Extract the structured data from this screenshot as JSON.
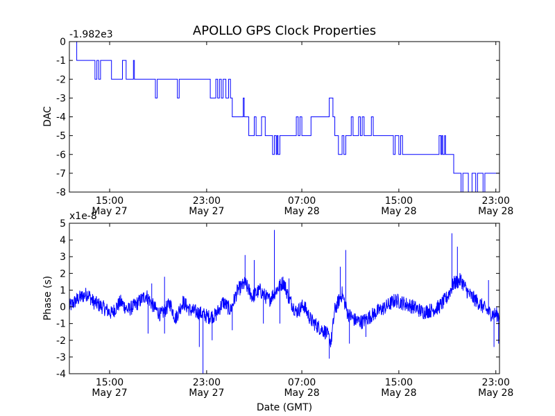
{
  "chart_data": [
    {
      "type": "line",
      "title": "APOLLO GPS Clock Properties",
      "ylabel": "DAC",
      "xlabel": "",
      "offset_label": "-1.982e3",
      "color": "#0000ff",
      "xlim_hours": [
        10,
        33.5
      ],
      "ylim": [
        -8,
        0
      ],
      "yticks": [
        0,
        -1,
        -2,
        -3,
        -4,
        -5,
        -6,
        -7,
        -8
      ],
      "ytick_labels": [
        "0",
        "-1",
        "-2",
        "-3",
        "-4",
        "-5",
        "-6",
        "-7",
        "-8"
      ],
      "xticks": [
        {
          "hours": 12.2,
          "time": "15:00",
          "date": "May 27"
        },
        {
          "hours": 17.5,
          "time": "23:00",
          "date": "May 27"
        },
        {
          "hours": 22.7,
          "time": "07:00",
          "date": "May 28"
        },
        {
          "hours": 28.0,
          "time": "15:00",
          "date": "May 28"
        },
        {
          "hours": 33.3,
          "time": "23:00",
          "date": "May 28"
        }
      ],
      "segments": [
        [
          10.0,
          0
        ],
        [
          10.4,
          -1
        ],
        [
          11.4,
          -2
        ],
        [
          11.5,
          -1
        ],
        [
          11.6,
          -2
        ],
        [
          11.7,
          -1
        ],
        [
          12.3,
          -2
        ],
        [
          12.9,
          -1
        ],
        [
          13.1,
          -2
        ],
        [
          13.5,
          -1
        ],
        [
          13.55,
          -2
        ],
        [
          14.7,
          -3
        ],
        [
          14.8,
          -2
        ],
        [
          15.9,
          -3
        ],
        [
          16.0,
          -2
        ],
        [
          17.6,
          -2
        ],
        [
          17.7,
          -3
        ],
        [
          18.0,
          -2
        ],
        [
          18.1,
          -3
        ],
        [
          18.2,
          -2
        ],
        [
          18.3,
          -3
        ],
        [
          18.4,
          -2
        ],
        [
          18.55,
          -3
        ],
        [
          18.7,
          -2
        ],
        [
          18.8,
          -3
        ],
        [
          18.9,
          -4
        ],
        [
          19.5,
          -3
        ],
        [
          19.55,
          -4
        ],
        [
          19.8,
          -5
        ],
        [
          20.1,
          -4
        ],
        [
          20.2,
          -5
        ],
        [
          20.5,
          -4
        ],
        [
          20.7,
          -5
        ],
        [
          21.1,
          -6
        ],
        [
          21.2,
          -5
        ],
        [
          21.3,
          -6
        ],
        [
          21.35,
          -5
        ],
        [
          21.4,
          -6
        ],
        [
          21.5,
          -5
        ],
        [
          22.4,
          -4
        ],
        [
          22.5,
          -5
        ],
        [
          22.6,
          -4
        ],
        [
          22.7,
          -5
        ],
        [
          23.2,
          -4
        ],
        [
          24.2,
          -3
        ],
        [
          24.4,
          -4
        ],
        [
          24.5,
          -5
        ],
        [
          24.7,
          -6
        ],
        [
          24.9,
          -5
        ],
        [
          25.0,
          -6
        ],
        [
          25.1,
          -5
        ],
        [
          25.4,
          -4
        ],
        [
          25.5,
          -5
        ],
        [
          25.8,
          -4
        ],
        [
          25.9,
          -5
        ],
        [
          26.0,
          -4
        ],
        [
          26.1,
          -5
        ],
        [
          26.5,
          -4
        ],
        [
          26.6,
          -5
        ],
        [
          27.7,
          -6
        ],
        [
          27.8,
          -5
        ],
        [
          28.0,
          -6
        ],
        [
          28.1,
          -5
        ],
        [
          28.2,
          -6
        ],
        [
          30.2,
          -5
        ],
        [
          30.3,
          -6
        ],
        [
          30.35,
          -5
        ],
        [
          30.4,
          -6
        ],
        [
          30.5,
          -5
        ],
        [
          30.55,
          -6
        ],
        [
          31.0,
          -7
        ],
        [
          31.4,
          -8
        ],
        [
          31.5,
          -7
        ],
        [
          31.8,
          -8
        ],
        [
          32.0,
          -7
        ],
        [
          32.2,
          -8
        ],
        [
          32.3,
          -7
        ],
        [
          32.6,
          -8
        ],
        [
          32.7,
          -7
        ],
        [
          33.5,
          -7
        ]
      ]
    },
    {
      "type": "line",
      "title": "",
      "ylabel": "Phase (s)",
      "xlabel": "Date (GMT)",
      "offset_label": "x1e-8",
      "color": "#0000ff",
      "xlim_hours": [
        10,
        33.5
      ],
      "ylim": [
        -4,
        5
      ],
      "yticks": [
        5,
        4,
        3,
        2,
        1,
        0,
        -1,
        -2,
        -3,
        -4
      ],
      "ytick_labels": [
        "5",
        "4",
        "3",
        "2",
        "1",
        "0",
        "-1",
        "-2",
        "-3",
        "-4"
      ],
      "xticks": [
        {
          "hours": 12.2,
          "time": "15:00",
          "date": "May 27"
        },
        {
          "hours": 17.5,
          "time": "23:00",
          "date": "May 27"
        },
        {
          "hours": 22.7,
          "time": "07:00",
          "date": "May 28"
        },
        {
          "hours": 28.0,
          "time": "15:00",
          "date": "May 28"
        },
        {
          "hours": 33.3,
          "time": "23:00",
          "date": "May 28"
        }
      ],
      "trend": [
        [
          10.0,
          0.0
        ],
        [
          10.5,
          0.5
        ],
        [
          11.0,
          0.8
        ],
        [
          11.3,
          0.3
        ],
        [
          11.8,
          0.0
        ],
        [
          12.3,
          -0.4
        ],
        [
          12.8,
          0.3
        ],
        [
          13.2,
          -0.2
        ],
        [
          13.6,
          0.1
        ],
        [
          14.2,
          0.7
        ],
        [
          14.6,
          0.0
        ],
        [
          15.0,
          -0.5
        ],
        [
          15.5,
          0.2
        ],
        [
          15.8,
          -0.7
        ],
        [
          16.2,
          0.3
        ],
        [
          16.6,
          -0.2
        ],
        [
          17.2,
          -0.4
        ],
        [
          17.6,
          -0.6
        ],
        [
          18.0,
          -0.5
        ],
        [
          18.4,
          0.3
        ],
        [
          18.8,
          -0.2
        ],
        [
          19.2,
          1.0
        ],
        [
          19.6,
          1.4
        ],
        [
          20.0,
          0.6
        ],
        [
          20.4,
          1.0
        ],
        [
          20.9,
          0.4
        ],
        [
          21.3,
          1.0
        ],
        [
          21.7,
          1.5
        ],
        [
          22.0,
          0.5
        ],
        [
          22.4,
          -0.3
        ],
        [
          22.8,
          0.1
        ],
        [
          23.2,
          -0.8
        ],
        [
          23.6,
          -1.2
        ],
        [
          24.0,
          -1.5
        ],
        [
          24.3,
          -2.1
        ],
        [
          24.5,
          -0.2
        ],
        [
          24.9,
          0.8
        ],
        [
          25.2,
          -0.4
        ],
        [
          25.6,
          -0.8
        ],
        [
          26.0,
          -0.9
        ],
        [
          26.4,
          -0.6
        ],
        [
          26.8,
          -0.3
        ],
        [
          27.3,
          0.0
        ],
        [
          27.8,
          0.4
        ],
        [
          28.3,
          0.2
        ],
        [
          28.8,
          0.0
        ],
        [
          29.3,
          -0.3
        ],
        [
          29.8,
          -0.2
        ],
        [
          30.2,
          0.0
        ],
        [
          30.6,
          0.5
        ],
        [
          31.0,
          1.4
        ],
        [
          31.4,
          1.6
        ],
        [
          31.8,
          0.8
        ],
        [
          32.2,
          0.4
        ],
        [
          32.6,
          0.0
        ],
        [
          33.0,
          -0.4
        ],
        [
          33.5,
          -0.5
        ]
      ],
      "noise_amplitude": 0.45,
      "spikes": [
        [
          14.3,
          -1.6
        ],
        [
          14.5,
          1.4
        ],
        [
          15.2,
          -1.6
        ],
        [
          15.2,
          1.8
        ],
        [
          17.1,
          -2.4
        ],
        [
          17.3,
          -4.0
        ],
        [
          17.8,
          -2.0
        ],
        [
          18.9,
          -1.4
        ],
        [
          19.6,
          3.1
        ],
        [
          20.1,
          2.8
        ],
        [
          20.6,
          -1.0
        ],
        [
          21.2,
          4.6
        ],
        [
          21.5,
          -1.0
        ],
        [
          22.0,
          1.7
        ],
        [
          24.2,
          -3.1
        ],
        [
          24.8,
          2.4
        ],
        [
          25.1,
          3.4
        ],
        [
          25.3,
          -2.2
        ],
        [
          26.2,
          -1.8
        ],
        [
          30.9,
          4.4
        ],
        [
          31.2,
          3.6
        ],
        [
          32.9,
          1.6
        ],
        [
          33.2,
          -2.4
        ],
        [
          33.45,
          -2.2
        ]
      ]
    }
  ]
}
